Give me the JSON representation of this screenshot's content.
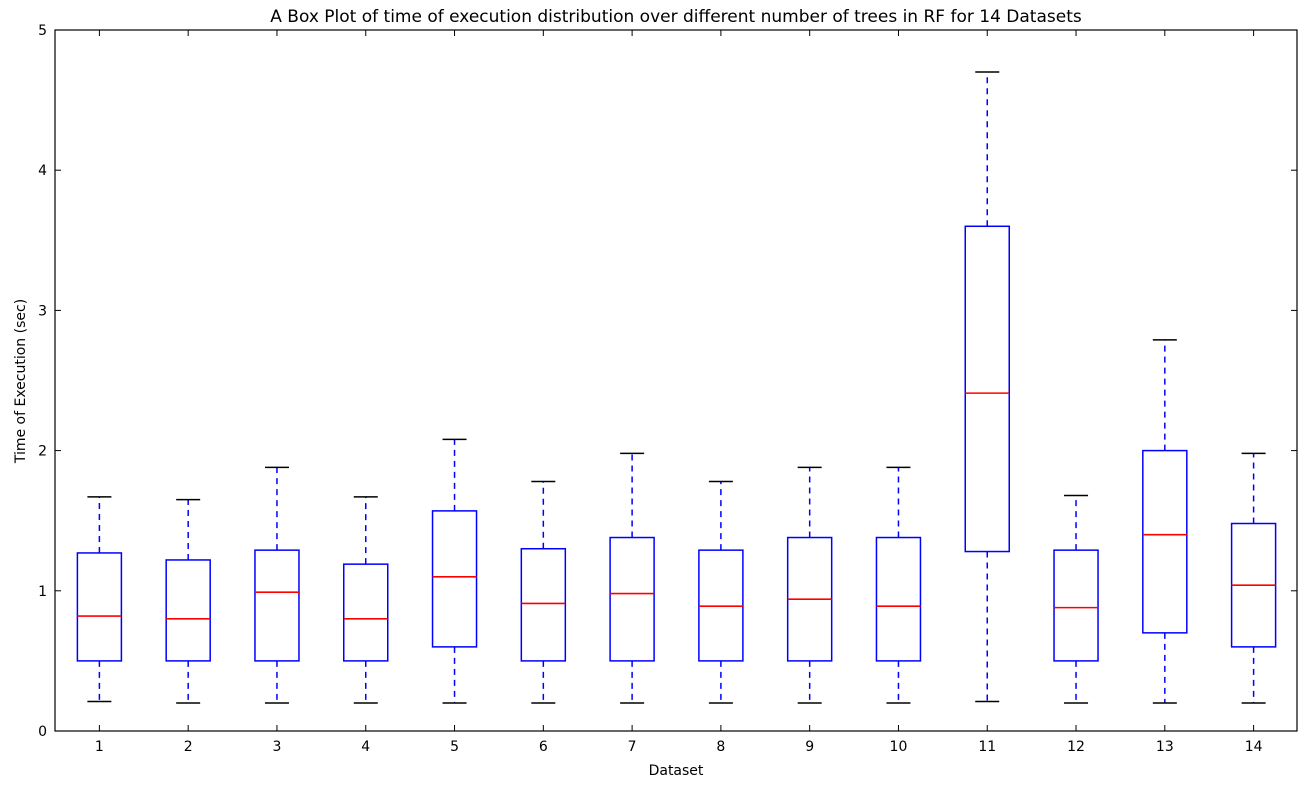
{
  "chart_data": {
    "type": "box",
    "title": "A Box Plot of time of execution distribution over different number of trees in RF for 14 Datasets",
    "xlabel": "Dataset",
    "ylabel": "Time of Execution (sec)",
    "ylim": [
      0,
      5
    ],
    "yticks": [
      "0",
      "1",
      "2",
      "3",
      "4",
      "5"
    ],
    "grid": false,
    "colors": {
      "box": "#0000ff",
      "whisker": "#0000ff",
      "median": "#ff0000",
      "cap": "#000000"
    },
    "boxes": [
      {
        "label": "1",
        "whislo": 0.21,
        "q1": 0.5,
        "med": 0.82,
        "q3": 1.27,
        "whishi": 1.67
      },
      {
        "label": "2",
        "whislo": 0.2,
        "q1": 0.5,
        "med": 0.8,
        "q3": 1.22,
        "whishi": 1.65
      },
      {
        "label": "3",
        "whislo": 0.2,
        "q1": 0.5,
        "med": 0.99,
        "q3": 1.29,
        "whishi": 1.88
      },
      {
        "label": "4",
        "whislo": 0.2,
        "q1": 0.5,
        "med": 0.8,
        "q3": 1.19,
        "whishi": 1.67
      },
      {
        "label": "5",
        "whislo": 0.2,
        "q1": 0.6,
        "med": 1.1,
        "q3": 1.57,
        "whishi": 2.08
      },
      {
        "label": "6",
        "whislo": 0.2,
        "q1": 0.5,
        "med": 0.91,
        "q3": 1.3,
        "whishi": 1.78
      },
      {
        "label": "7",
        "whislo": 0.2,
        "q1": 0.5,
        "med": 0.98,
        "q3": 1.38,
        "whishi": 1.98
      },
      {
        "label": "8",
        "whislo": 0.2,
        "q1": 0.5,
        "med": 0.89,
        "q3": 1.29,
        "whishi": 1.78
      },
      {
        "label": "9",
        "whislo": 0.2,
        "q1": 0.5,
        "med": 0.94,
        "q3": 1.38,
        "whishi": 1.88
      },
      {
        "label": "10",
        "whislo": 0.2,
        "q1": 0.5,
        "med": 0.89,
        "q3": 1.38,
        "whishi": 1.88
      },
      {
        "label": "11",
        "whislo": 0.21,
        "q1": 1.28,
        "med": 2.41,
        "q3": 3.6,
        "whishi": 4.7
      },
      {
        "label": "12",
        "whislo": 0.2,
        "q1": 0.5,
        "med": 0.88,
        "q3": 1.29,
        "whishi": 1.68
      },
      {
        "label": "13",
        "whislo": 0.2,
        "q1": 0.7,
        "med": 1.4,
        "q3": 2.0,
        "whishi": 2.79
      },
      {
        "label": "14",
        "whislo": 0.2,
        "q1": 0.6,
        "med": 1.04,
        "q3": 1.48,
        "whishi": 1.98
      }
    ]
  }
}
